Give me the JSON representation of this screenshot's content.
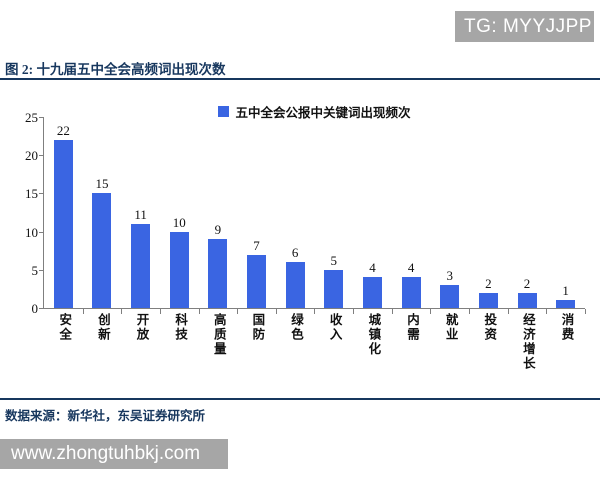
{
  "banner": {
    "text": "TG: MYYJJPP"
  },
  "figure": {
    "title": "图 2:  十九届五中全会高频词出现次数",
    "source": "数据来源：新华社，东吴证券研究所"
  },
  "watermark": {
    "url": "www.zhongtuhbkj.com"
  },
  "colors": {
    "bar_blue": "#3a65e2",
    "banner_gray": "#a6a6a6",
    "accent_navy": "#17375e",
    "axis_gray": "#7f7f7f"
  },
  "chart_data": {
    "type": "bar",
    "title": "",
    "legend": [
      "五中全会公报中关键词出现频次"
    ],
    "legend_position": "top-center",
    "categories": [
      "安全",
      "创新",
      "开放",
      "科技",
      "高质量",
      "国防",
      "绿色",
      "收入",
      "城镇化",
      "内需",
      "就业",
      "投资",
      "经济增长",
      "消费"
    ],
    "values": [
      22,
      15,
      11,
      10,
      9,
      7,
      6,
      5,
      4,
      4,
      3,
      2,
      2,
      1
    ],
    "bar_labels": true,
    "xlabel": "",
    "ylabel": "",
    "ylim": [
      0,
      25
    ],
    "yticks": [
      0,
      5,
      10,
      15,
      20,
      25
    ],
    "grid": false
  }
}
